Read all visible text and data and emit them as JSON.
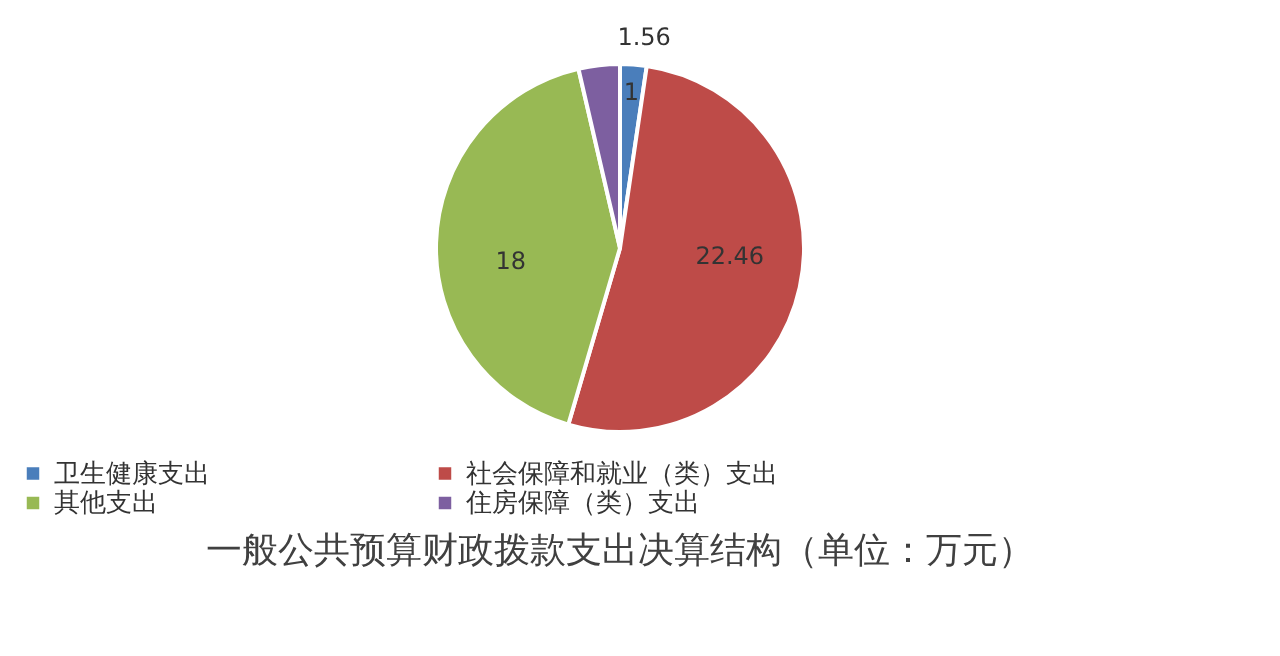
{
  "chart_data": {
    "type": "pie",
    "title": "一般公共预算财政拨款支出决算结构（单位：万元）",
    "categories": [
      "卫生健康支出",
      "社会保障和就业（类）支出",
      "其他支出",
      "住房保障（类）支出"
    ],
    "values": [
      1,
      22.46,
      18,
      1.56
    ],
    "colors": [
      "#4a7ebb",
      "#be4b48",
      "#98b954",
      "#7d5fa0"
    ],
    "data_labels": true,
    "legend": "bottom"
  }
}
